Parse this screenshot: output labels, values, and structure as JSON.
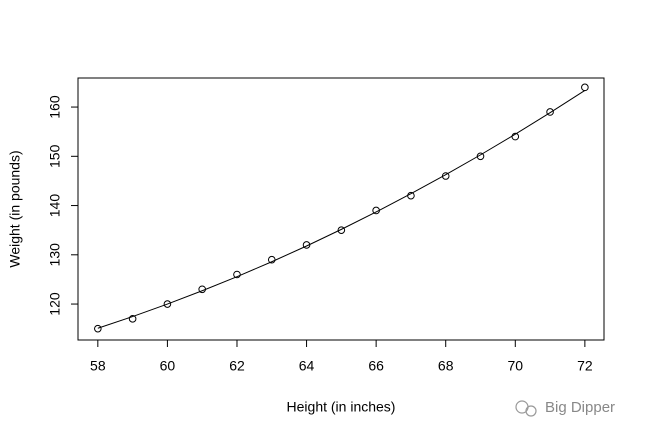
{
  "chart_data": {
    "type": "scatter",
    "xlabel": "Height (in inches)",
    "ylabel": "Weight (in pounds)",
    "x": [
      58,
      59,
      60,
      61,
      62,
      63,
      64,
      65,
      66,
      67,
      68,
      69,
      70,
      71,
      72
    ],
    "series": [
      {
        "color": "#000000",
        "style": "points",
        "values": [
          115,
          117,
          120,
          123,
          126,
          129,
          132,
          135,
          139,
          142,
          146,
          150,
          154,
          159,
          164
        ]
      },
      {
        "color": "#000000",
        "style": "line",
        "values": [
          115.09,
          117.46,
          120.0,
          122.7,
          125.56,
          128.59,
          131.79,
          135.16,
          138.7,
          142.4,
          146.26,
          150.29,
          154.49,
          158.85,
          163.37
        ]
      }
    ],
    "xlim": [
      57.43,
      72.55
    ],
    "ylim": [
      112.7,
      165.9
    ],
    "xticks": [
      58,
      60,
      62,
      64,
      66,
      68,
      70,
      72
    ],
    "yticks": [
      120,
      130,
      140,
      150,
      160
    ],
    "watermark": "Big Dipper"
  }
}
